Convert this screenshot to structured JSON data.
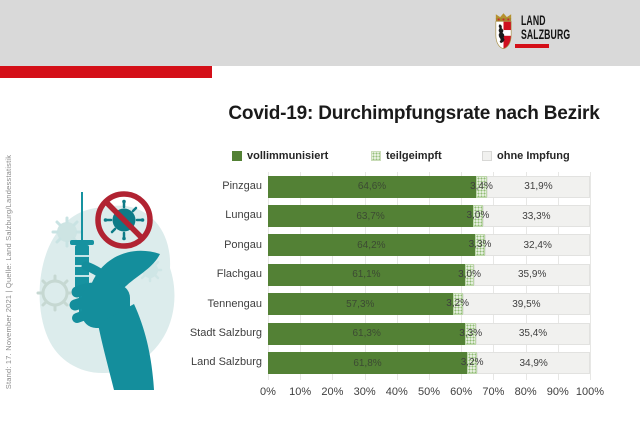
{
  "header": {
    "logo_line1": "LAND",
    "logo_line2": "SALZBURG"
  },
  "source_note": "Stand: 17. November 2021 | Quelle: Land Salzburg/Landesstatistik",
  "legend": [
    {
      "label": "vollimmunisiert",
      "color": "#538135",
      "style": "solid"
    },
    {
      "label": "teilgeimpft",
      "color": "#a9ce8e",
      "style": "dotted"
    },
    {
      "label": "ohne Impfung",
      "color": "#f1f1ef",
      "style": "plain"
    }
  ],
  "colors": {
    "accent_red": "#d40f18",
    "header_band_gray": "#d9d9d9",
    "bar_green": "#538135",
    "teil_green_pattern": "#a9ce8e",
    "ohne_gray": "#f1f1ef",
    "illustration_teal": "#1692a0",
    "prohibition_red": "#b12332"
  },
  "chart_data": {
    "type": "bar",
    "orientation": "horizontal-stacked",
    "title": "Covid-19: Durchimpfungsrate nach Bezirk",
    "legend_position": "top",
    "grid": true,
    "xlim": [
      0,
      100
    ],
    "x_axis_ticks": [
      "0%",
      "10%",
      "20%",
      "30%",
      "40%",
      "50%",
      "60%",
      "70%",
      "80%",
      "90%",
      "100%"
    ],
    "categories": [
      "Pinzgau",
      "Lungau",
      "Pongau",
      "Flachgau",
      "Tennengau",
      "Stadt Salzburg",
      "Land Salzburg"
    ],
    "series": [
      {
        "name": "vollimmunisiert",
        "values": [
          64.6,
          63.7,
          64.2,
          61.1,
          57.3,
          61.3,
          61.8
        ],
        "labels": [
          "64,6%",
          "63,7%",
          "64,2%",
          "61,1%",
          "57,3%",
          "61,3%",
          "61,8%"
        ]
      },
      {
        "name": "teilgeimpft",
        "values": [
          3.4,
          3.0,
          3.3,
          3.0,
          3.2,
          3.3,
          3.2
        ],
        "labels": [
          "3,4%",
          "3,0%",
          "3,3%",
          "3,0%",
          "3,2%",
          "3,3%",
          "3,2%"
        ]
      },
      {
        "name": "ohne Impfung",
        "values": [
          31.9,
          33.3,
          32.4,
          35.9,
          39.5,
          35.4,
          34.9
        ],
        "labels": [
          "31,9%",
          "33,3%",
          "32,4%",
          "35,9%",
          "39,5%",
          "35,4%",
          "34,9%"
        ]
      }
    ]
  }
}
